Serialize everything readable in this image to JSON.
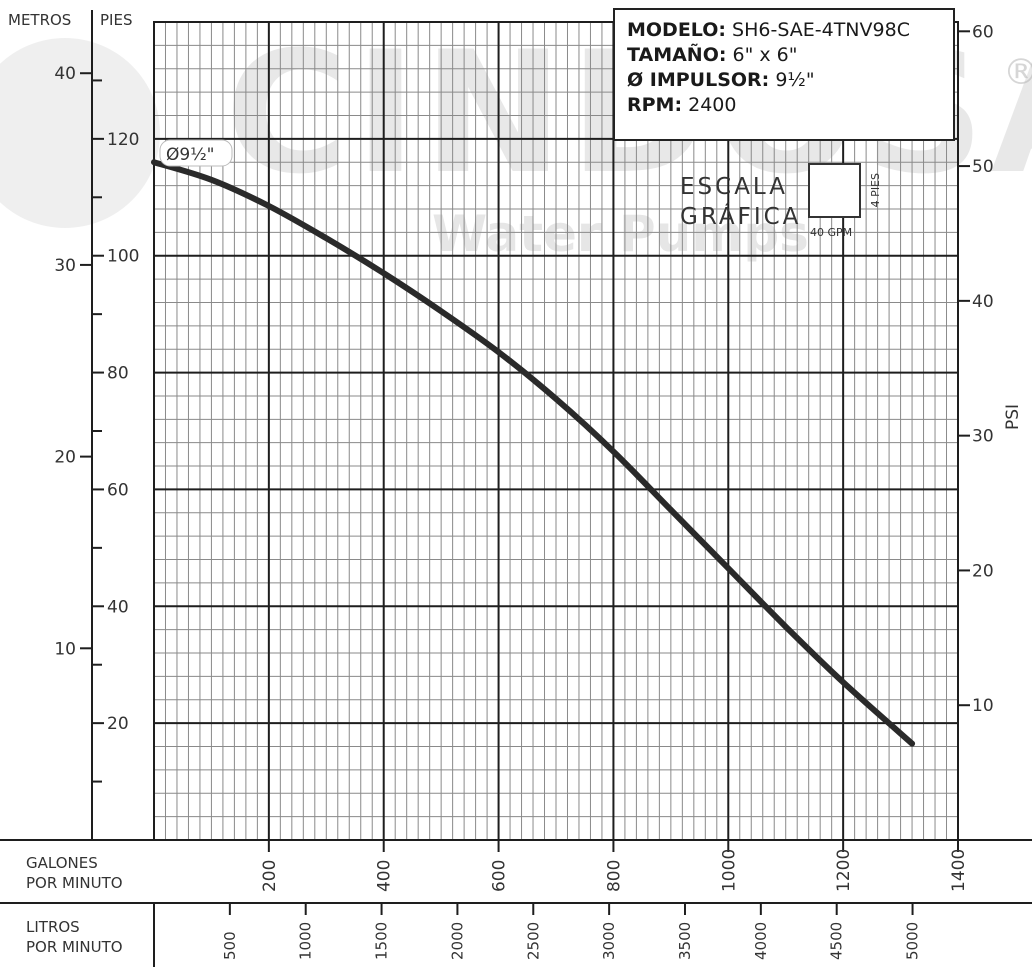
{
  "watermark": {
    "brand": "CINDOSA",
    "tagline": "Water Pumps",
    "reg_mark": "®"
  },
  "info_box": {
    "model_label": "MODELO:",
    "model_value": "SH6-SAE-4TNV98C",
    "size_label": "TAMAÑO:",
    "size_value": "6\" x 6\"",
    "impeller_label": "Ø IMPULSOR:",
    "impeller_value": "9½\"",
    "rpm_label": "RPM:",
    "rpm_value": "2400"
  },
  "scale_legend": {
    "line1": "ESCALA",
    "line2": "GRÁFICA",
    "width_label": "40 GPM",
    "height_label": "4 PIES"
  },
  "chart_data": {
    "type": "line",
    "curve_label": "Ø9½\"",
    "axes": {
      "left_metros": {
        "label": "METROS",
        "ticks": [
          10,
          20,
          30,
          40
        ]
      },
      "left_pies": {
        "label": "PIES",
        "range": [
          0,
          140
        ],
        "ticks": [
          20,
          40,
          60,
          80,
          100,
          120
        ]
      },
      "right_psi": {
        "label": "PSI",
        "ticks": [
          10,
          20,
          30,
          40,
          50,
          60
        ]
      },
      "bottom_gpm": {
        "label_line1": "GALONES",
        "label_line2": "POR MINUTO",
        "range": [
          0,
          1400
        ],
        "ticks": [
          200,
          400,
          600,
          800,
          1000,
          1200,
          1400
        ]
      },
      "bottom_lpm": {
        "label_line1": "LITROS",
        "label_line2": "POR MINUTO",
        "ticks": [
          500,
          1000,
          1500,
          2000,
          2500,
          3000,
          3500,
          4000,
          4500,
          5000
        ]
      }
    },
    "grid": true,
    "series": [
      {
        "x_gpm": [
          0,
          100,
          200,
          300,
          400,
          500,
          600,
          700,
          800,
          900,
          1000,
          1100,
          1200,
          1320
        ],
        "y_pies": [
          116,
          113,
          108.5,
          103,
          97,
          90.5,
          83.5,
          75.5,
          66.5,
          56.5,
          46.5,
          36.5,
          27,
          16.5
        ]
      }
    ]
  }
}
